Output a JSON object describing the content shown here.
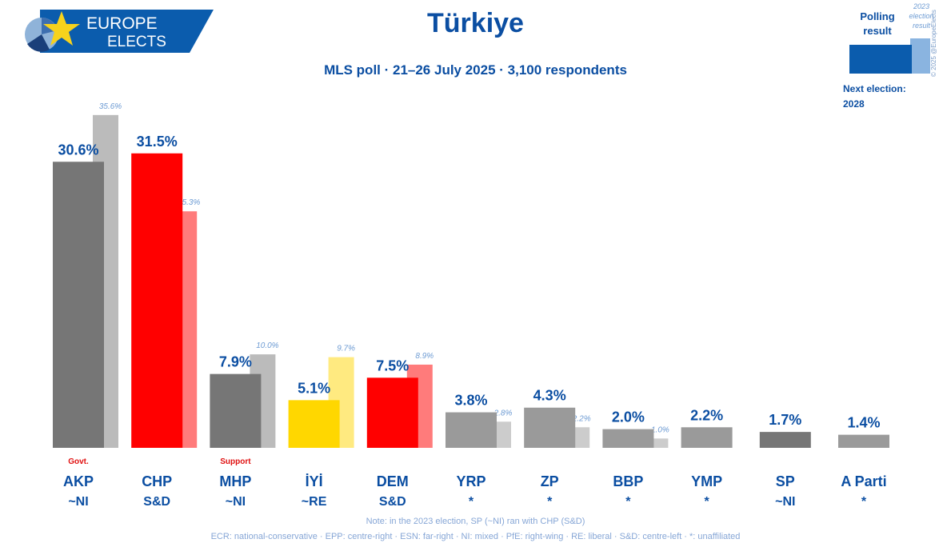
{
  "header": {
    "logo_text_line1": "EUROPE",
    "logo_text_line2": "ELECTS",
    "title": "Türkiye",
    "subtitle": "MLS poll · 21–26 July 2025 · 3,100 respondents"
  },
  "legend": {
    "polling_label": "Polling result",
    "election_label": "2023 election result",
    "next_election_label": "Next election:",
    "next_election_year": "2028",
    "copyright": "© 2025 @EuropeElects"
  },
  "chart_data": {
    "type": "bar",
    "title": "Türkiye",
    "subtitle": "MLS poll · 21–26 July 2025 · 3,100 respondents",
    "ylim": [
      0,
      37
    ],
    "grid": false,
    "legend_position": "top-right",
    "categories": [
      {
        "party": "AKP",
        "group": "~NI",
        "poll": 30.6,
        "poll_label": "30.6%",
        "election": 35.6,
        "election_label": "35.6%",
        "status": "Govt.",
        "poll_color": "#767676",
        "election_color": "#bbbbbb"
      },
      {
        "party": "CHP",
        "group": "S&D",
        "poll": 31.5,
        "poll_label": "31.5%",
        "election": 25.3,
        "election_label": "25.3%",
        "status": "",
        "poll_color": "#ff0000",
        "election_color": "#ff7b7b"
      },
      {
        "party": "MHP",
        "group": "~NI",
        "poll": 7.9,
        "poll_label": "7.9%",
        "election": 10.0,
        "election_label": "10.0%",
        "status": "Support",
        "poll_color": "#767676",
        "election_color": "#bbbbbb"
      },
      {
        "party": "İYİ",
        "group": "~RE",
        "poll": 5.1,
        "poll_label": "5.1%",
        "election": 9.7,
        "election_label": "9.7%",
        "status": "",
        "poll_color": "#ffd700",
        "election_color": "#ffea80"
      },
      {
        "party": "DEM",
        "group": "S&D",
        "poll": 7.5,
        "poll_label": "7.5%",
        "election": 8.9,
        "election_label": "8.9%",
        "status": "",
        "poll_color": "#ff0000",
        "election_color": "#ff7b7b"
      },
      {
        "party": "YRP",
        "group": "*",
        "poll": 3.8,
        "poll_label": "3.8%",
        "election": 2.8,
        "election_label": "2.8%",
        "status": "",
        "poll_color": "#9a9a9a",
        "election_color": "#cccccc"
      },
      {
        "party": "ZP",
        "group": "*",
        "poll": 4.3,
        "poll_label": "4.3%",
        "election": 2.2,
        "election_label": "2.2%",
        "status": "",
        "poll_color": "#9a9a9a",
        "election_color": "#cccccc"
      },
      {
        "party": "BBP",
        "group": "*",
        "poll": 2.0,
        "poll_label": "2.0%",
        "election": 1.0,
        "election_label": "1.0%",
        "status": "",
        "poll_color": "#9a9a9a",
        "election_color": "#cccccc"
      },
      {
        "party": "YMP",
        "group": "*",
        "poll": 2.2,
        "poll_label": "2.2%",
        "election": null,
        "election_label": "",
        "status": "",
        "poll_color": "#9a9a9a",
        "election_color": "#cccccc"
      },
      {
        "party": "SP",
        "group": "~NI",
        "poll": 1.7,
        "poll_label": "1.7%",
        "election": null,
        "election_label": "",
        "status": "",
        "poll_color": "#767676",
        "election_color": "#bbbbbb"
      },
      {
        "party": "A Parti",
        "group": "*",
        "poll": 1.4,
        "poll_label": "1.4%",
        "election": null,
        "election_label": "",
        "status": "",
        "poll_color": "#9a9a9a",
        "election_color": "#cccccc"
      }
    ]
  },
  "notes": {
    "line1": "Note: in the 2023 election, SP (~NI) ran with CHP (S&D)",
    "line2": "ECR: national-conservative · EPP: centre-right · ESN: far-right · NI: mixed · PfE: right-wing · RE: liberal · S&D: centre-left · *: unaffiliated"
  },
  "colors": {
    "brand_blue": "#0b4ea2",
    "legend_poll": "#0b5cad",
    "legend_election": "#8ab4e0",
    "status_red": "#e01010",
    "note_blue": "#86a6d6"
  }
}
